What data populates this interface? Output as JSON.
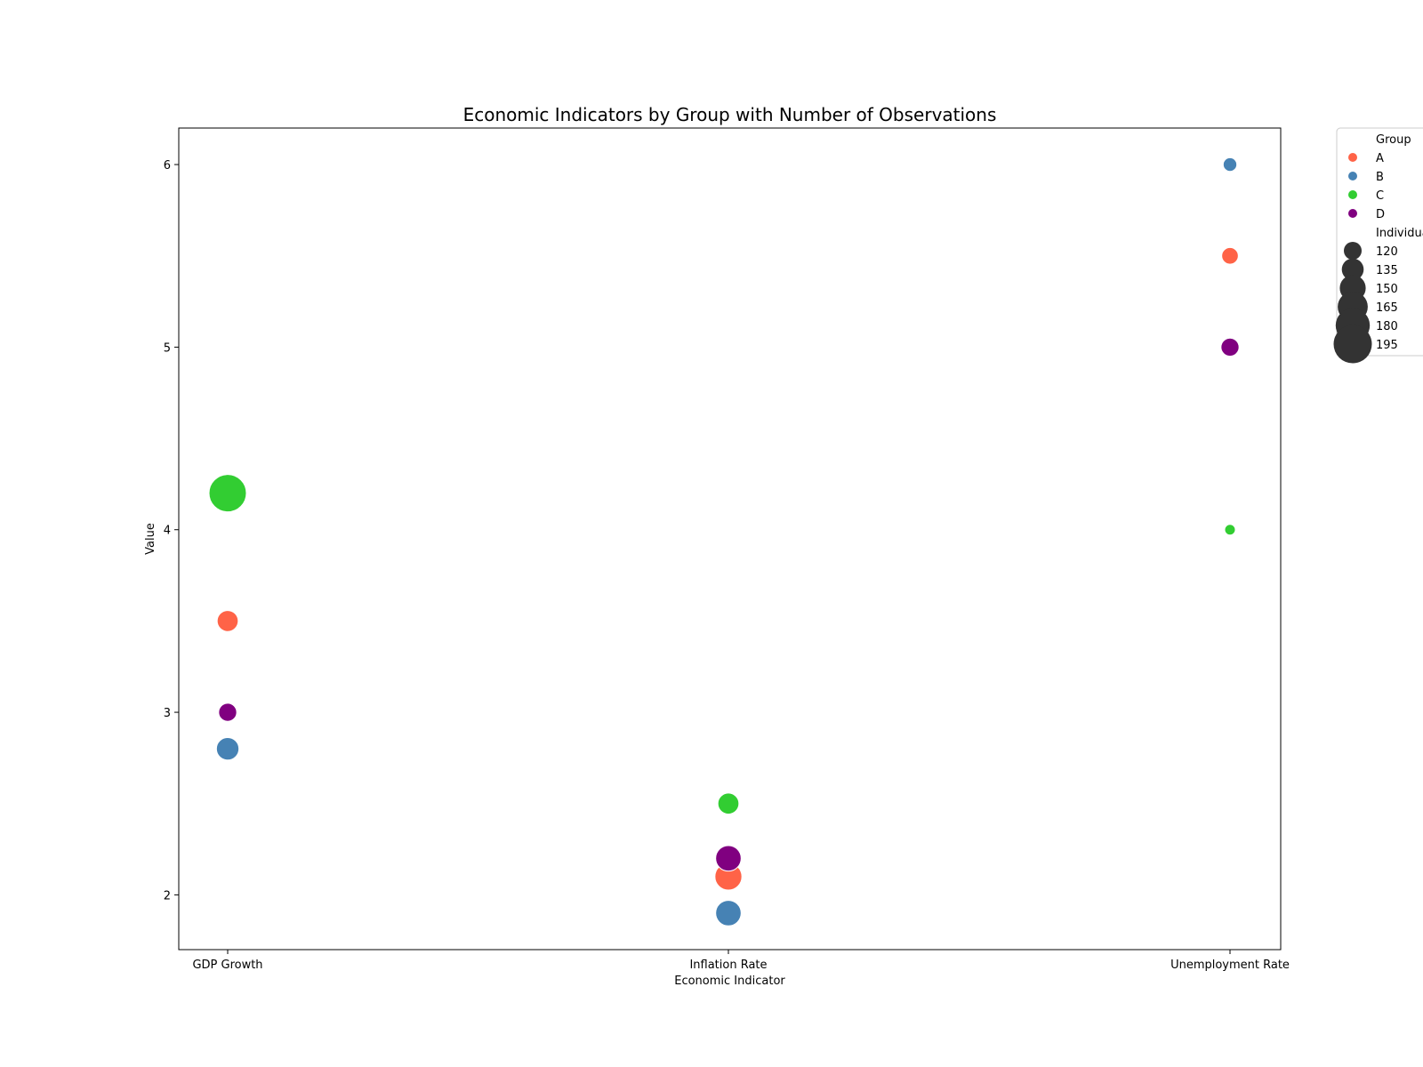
{
  "chart_data": {
    "type": "scatter",
    "title": "Economic Indicators by Group with Number of Observations",
    "xlabel": "Economic Indicator",
    "ylabel": "Value",
    "categories": [
      "GDP Growth",
      "Inflation Rate",
      "Unemployment Rate"
    ],
    "yticks": [
      2,
      3,
      4,
      5,
      6
    ],
    "ylim": [
      1.7,
      6.2
    ],
    "grid": false,
    "legend_position": "outside-right",
    "hue_legend_title": "Group",
    "size_legend_title": "Individuals",
    "size_legend_values": [
      120,
      135,
      150,
      165,
      180,
      195
    ],
    "size_range": [
      110,
      200
    ],
    "series": [
      {
        "name": "A",
        "color": "#FF6347",
        "points": [
          {
            "x": "GDP Growth",
            "y": 3.5,
            "size": 145
          },
          {
            "x": "Inflation Rate",
            "y": 2.1,
            "size": 165
          },
          {
            "x": "Unemployment Rate",
            "y": 5.5,
            "size": 130
          }
        ]
      },
      {
        "name": "B",
        "color": "#4682B4",
        "points": [
          {
            "x": "GDP Growth",
            "y": 2.8,
            "size": 150
          },
          {
            "x": "Inflation Rate",
            "y": 1.9,
            "size": 160
          },
          {
            "x": "Unemployment Rate",
            "y": 6.0,
            "size": 120
          }
        ]
      },
      {
        "name": "C",
        "color": "#32CD32",
        "points": [
          {
            "x": "GDP Growth",
            "y": 4.2,
            "size": 200
          },
          {
            "x": "Inflation Rate",
            "y": 2.5,
            "size": 145
          },
          {
            "x": "Unemployment Rate",
            "y": 4.0,
            "size": 110
          }
        ]
      },
      {
        "name": "D",
        "color": "#800080",
        "points": [
          {
            "x": "GDP Growth",
            "y": 3.0,
            "size": 135
          },
          {
            "x": "Inflation Rate",
            "y": 2.2,
            "size": 160
          },
          {
            "x": "Unemployment Rate",
            "y": 5.0,
            "size": 135
          }
        ]
      }
    ]
  }
}
